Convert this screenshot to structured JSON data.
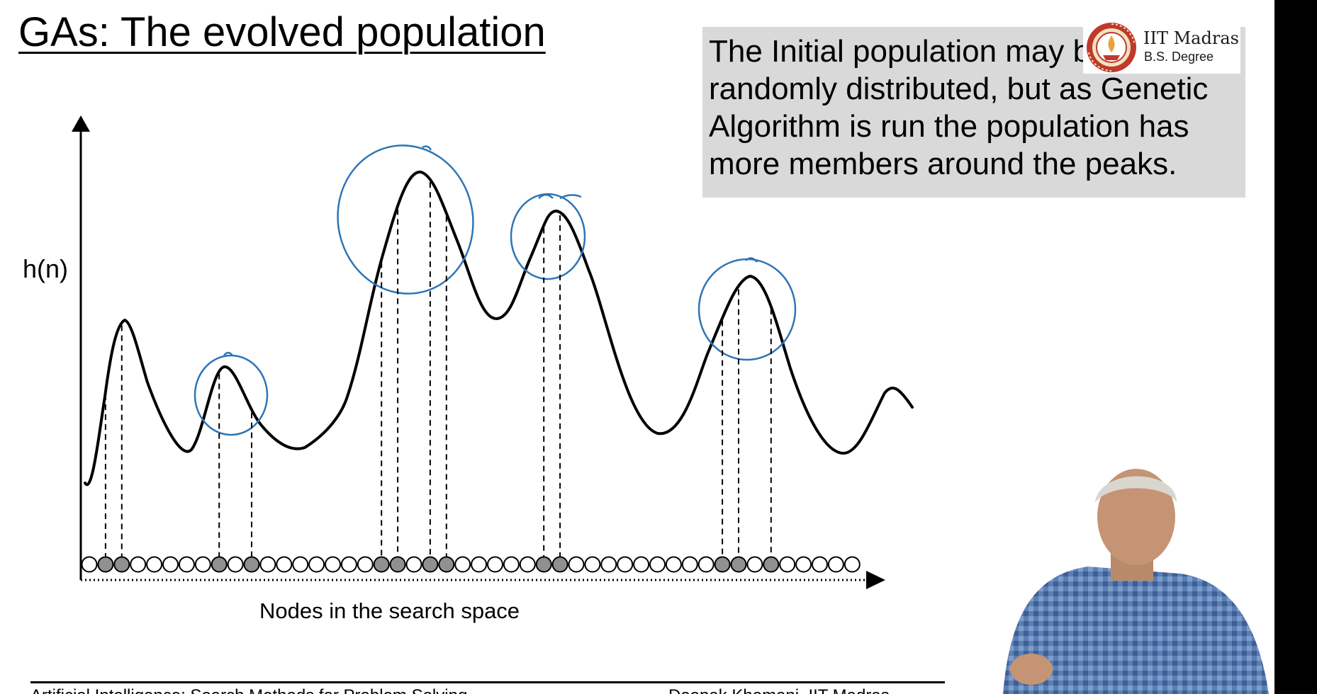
{
  "slide": {
    "title": "GAs: The evolved population",
    "note_lines": [
      "The Initial population may be",
      "randomly distributed, but as Genetic",
      "Algorithm is run the population has",
      "more members around the peaks."
    ],
    "footer_left": "Artificial Intelligence: Search Methods for Problem Solving",
    "footer_right": "Deepak Khemani, IIT Madras"
  },
  "logo": {
    "name": "IIT Madras",
    "degree": "B.S. Degree",
    "colors": {
      "ring": "#c0392b",
      "flame": "#e8a33d",
      "text": "#1a1a1a"
    }
  },
  "diagram": {
    "ylabel": "h(n)",
    "xlabel": "Nodes in the search space",
    "node_count": 48,
    "selected_nodes": [
      1,
      2,
      8,
      10,
      18,
      19,
      21,
      22,
      28,
      29,
      39,
      40,
      42
    ],
    "peaks_circled": 4,
    "colors": {
      "curve": "#000000",
      "circle": "#2e75b6",
      "node_empty": "#ffffff",
      "node_filled": "#909090"
    }
  }
}
